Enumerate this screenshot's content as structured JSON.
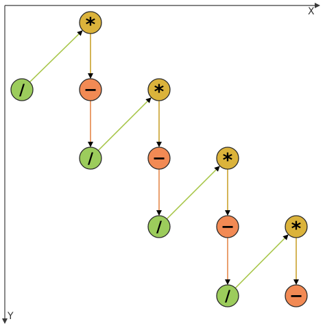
{
  "axes": {
    "x_label": "X",
    "y_label": "Y",
    "axis_color": "#3a3a3a"
  },
  "colors": {
    "divide_fill": "#9ccc5c",
    "multiply_fill": "#dbb33b",
    "minus_fill": "#f28a54",
    "edge_green": "#a8c64a",
    "edge_gold": "#c9a12c",
    "edge_orange": "#e5874a"
  },
  "node_symbols": {
    "divide": "/",
    "multiply": "*",
    "minus": "−"
  },
  "diagram": {
    "kind": "staircase operator chain",
    "sequence": [
      "divide",
      "multiply",
      "minus",
      "divide",
      "multiply",
      "minus",
      "divide",
      "multiply",
      "minus",
      "divide",
      "multiply",
      "minus"
    ]
  }
}
